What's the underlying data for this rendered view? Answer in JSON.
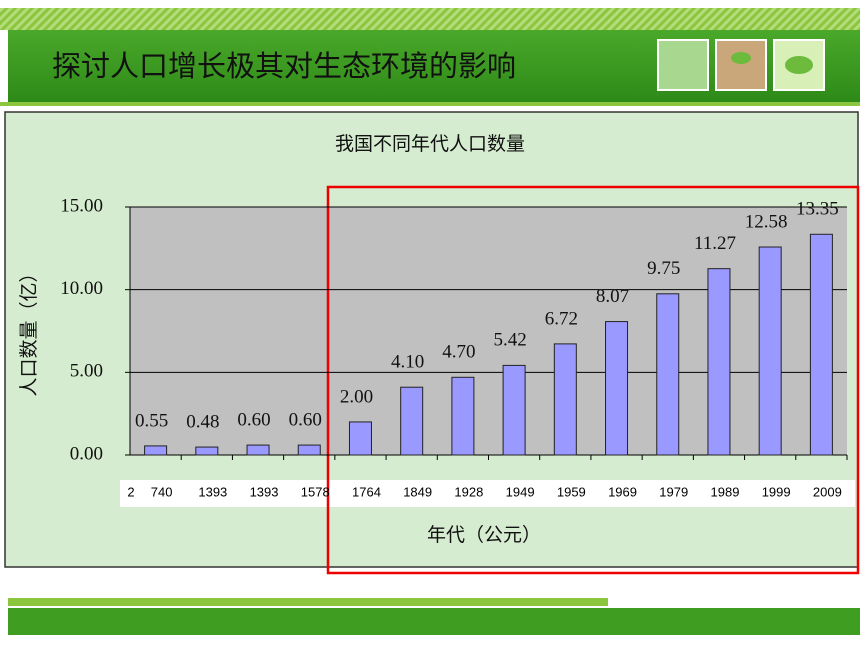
{
  "header": {
    "title": "探讨人口增长极其对生态环境的影响"
  },
  "chart_data": {
    "type": "bar",
    "title": "我国不同年代人口数量",
    "x_label": "年代（公元）",
    "y_label": "人口数量（亿）",
    "category_overflow": "2",
    "categories": [
      "740",
      "1393",
      "1393",
      "1578",
      "1764",
      "1849",
      "1928",
      "1949",
      "1959",
      "1969",
      "1979",
      "1989",
      "1999",
      "2009"
    ],
    "values": [
      0.55,
      0.48,
      0.6,
      0.6,
      2.0,
      4.1,
      4.7,
      5.42,
      6.72,
      8.07,
      9.75,
      11.27,
      12.58,
      13.35
    ],
    "value_labels": [
      "0.55",
      "0.48",
      "0.60",
      "0.60",
      "2.00",
      "4.10",
      "4.70",
      "5.42",
      "6.72",
      "8.07",
      "9.75",
      "11.27",
      "12.58",
      "13.35"
    ],
    "color": "#9999ff",
    "ylim": [
      0,
      15
    ],
    "yticks": [
      {
        "value": 0,
        "label": "0.00"
      },
      {
        "value": 5,
        "label": "5.00"
      },
      {
        "value": 10,
        "label": "10.00"
      },
      {
        "value": 15,
        "label": "15.00"
      }
    ],
    "grid": true
  }
}
